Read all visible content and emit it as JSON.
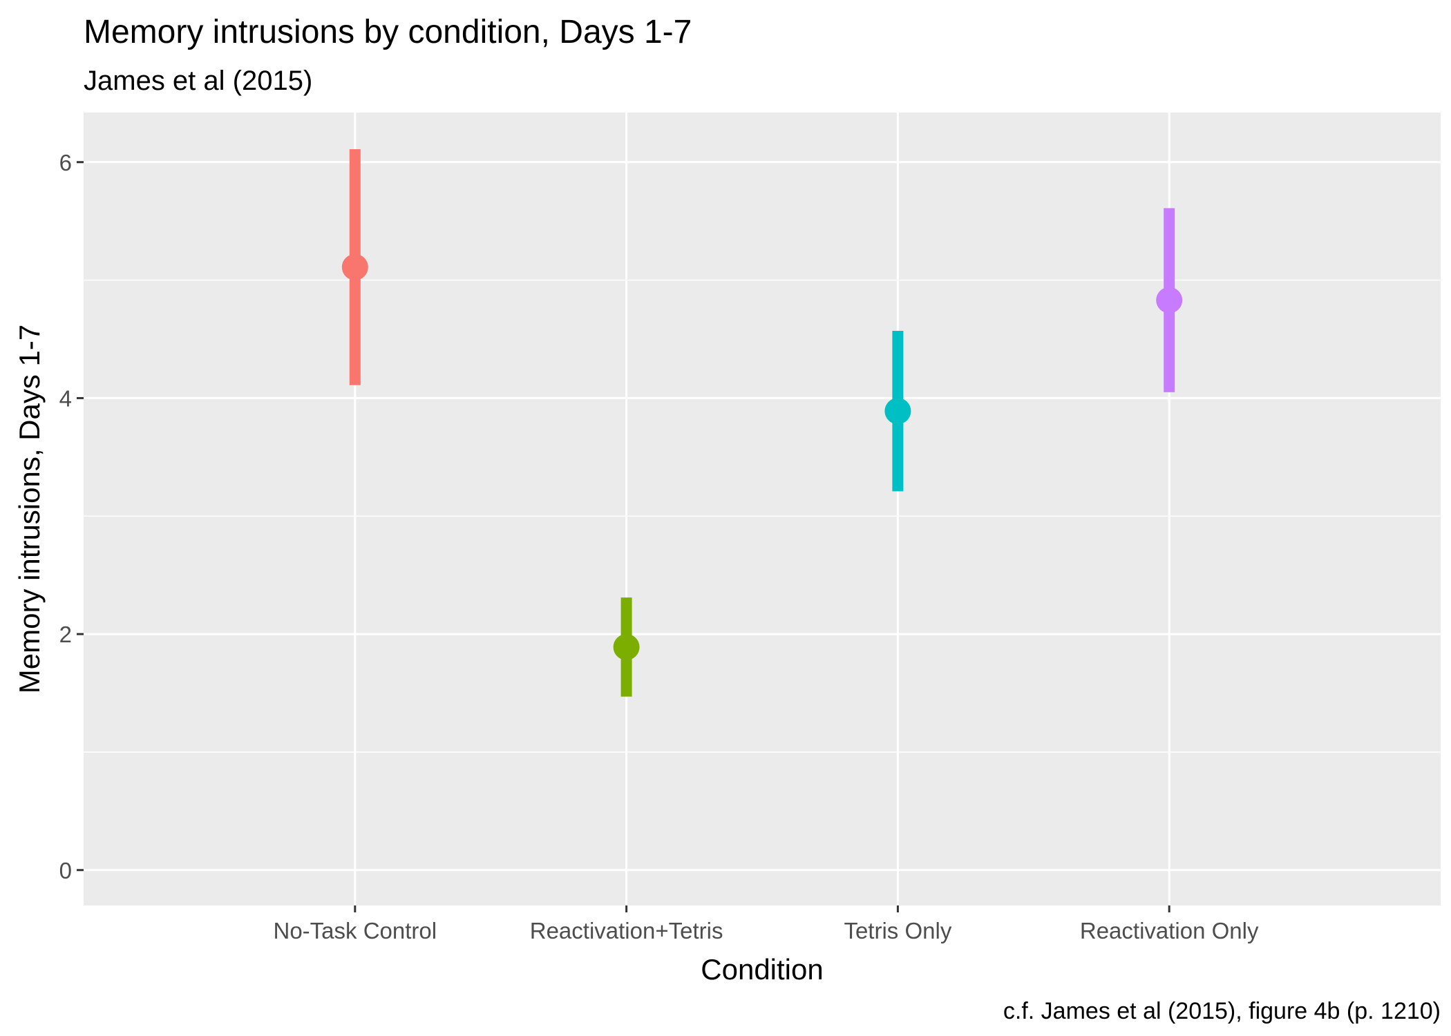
{
  "chart_data": {
    "type": "pointrange",
    "title": "Memory intrusions by condition, Days 1-7",
    "subtitle": "James et al (2015)",
    "xlabel": "Condition",
    "ylabel": "Memory intrusions, Days 1-7",
    "caption": "c.f. James et al (2015), figure 4b (p. 1210)",
    "categories": [
      "No-Task Control",
      "Reactivation+Tetris",
      "Tetris Only",
      "Reactivation Only"
    ],
    "means": [
      5.11,
      1.89,
      3.89,
      4.83
    ],
    "lower": [
      4.11,
      1.47,
      3.21,
      4.05
    ],
    "upper": [
      6.11,
      2.31,
      4.57,
      5.61
    ],
    "colors": [
      "#F8766D",
      "#7CAE00",
      "#00BFC4",
      "#C77CFF"
    ],
    "ylim": [
      -0.3,
      6.42
    ],
    "yticks": [
      0,
      2,
      4,
      6
    ],
    "ytick_labels": [
      "0",
      "2",
      "4",
      "6"
    ],
    "panel_background": "#EBEBEB",
    "grid": true,
    "legend": "none"
  }
}
